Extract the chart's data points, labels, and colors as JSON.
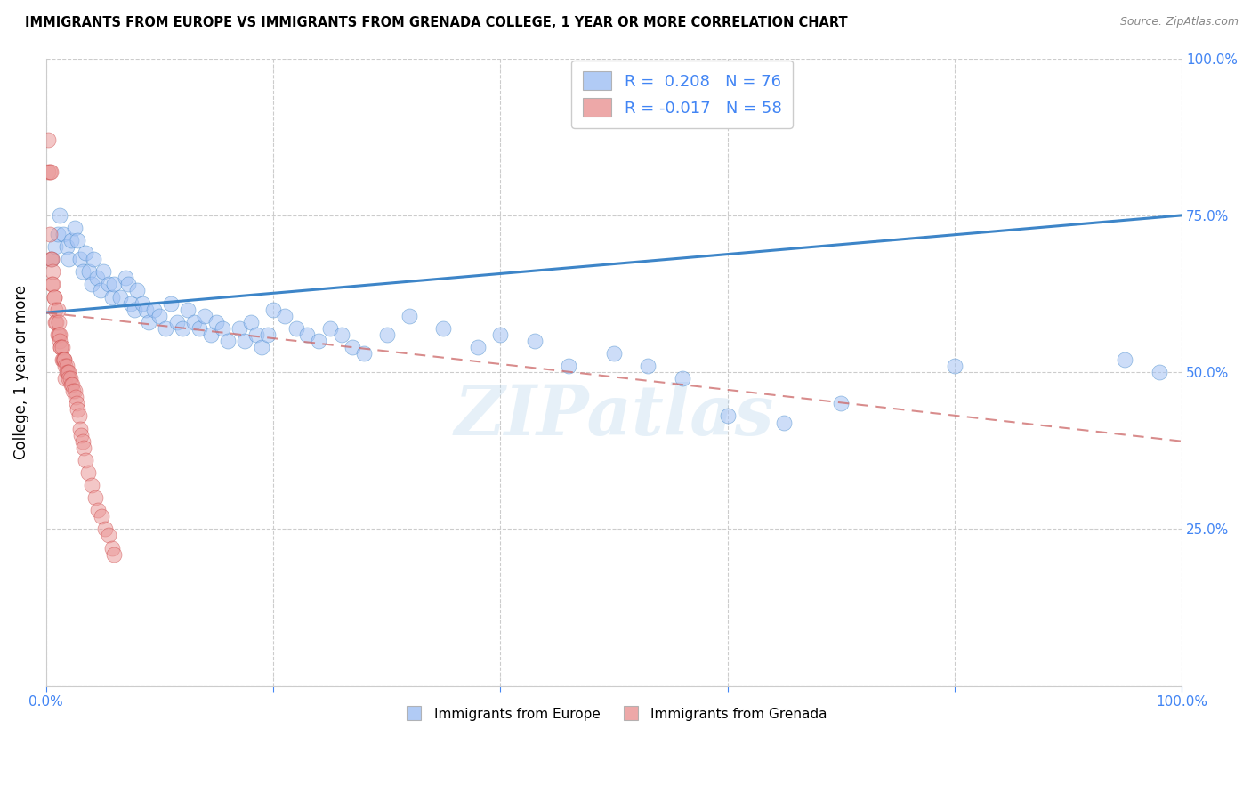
{
  "title": "IMMIGRANTS FROM EUROPE VS IMMIGRANTS FROM GRENADA COLLEGE, 1 YEAR OR MORE CORRELATION CHART",
  "source": "Source: ZipAtlas.com",
  "ylabel": "College, 1 year or more",
  "xlim": [
    0.0,
    1.0
  ],
  "ylim": [
    0.0,
    1.0
  ],
  "legend_R1": "0.208",
  "legend_N1": "76",
  "legend_R2": "-0.017",
  "legend_N2": "58",
  "blue_color": "#a4c2f4",
  "pink_color": "#ea9999",
  "blue_line_color": "#3d85c8",
  "pink_line_color": "#cc6666",
  "watermark": "ZIPatlas",
  "blue_scatter_x": [
    0.005,
    0.008,
    0.01,
    0.012,
    0.015,
    0.018,
    0.02,
    0.022,
    0.025,
    0.028,
    0.03,
    0.032,
    0.035,
    0.038,
    0.04,
    0.042,
    0.045,
    0.048,
    0.05,
    0.055,
    0.058,
    0.06,
    0.065,
    0.07,
    0.072,
    0.075,
    0.078,
    0.08,
    0.085,
    0.088,
    0.09,
    0.095,
    0.1,
    0.105,
    0.11,
    0.115,
    0.12,
    0.125,
    0.13,
    0.135,
    0.14,
    0.145,
    0.15,
    0.155,
    0.16,
    0.17,
    0.175,
    0.18,
    0.185,
    0.19,
    0.195,
    0.2,
    0.21,
    0.22,
    0.23,
    0.24,
    0.25,
    0.26,
    0.27,
    0.28,
    0.3,
    0.32,
    0.35,
    0.38,
    0.4,
    0.43,
    0.46,
    0.5,
    0.53,
    0.56,
    0.6,
    0.65,
    0.7,
    0.8,
    0.95,
    0.98
  ],
  "blue_scatter_y": [
    0.68,
    0.7,
    0.72,
    0.75,
    0.72,
    0.7,
    0.68,
    0.71,
    0.73,
    0.71,
    0.68,
    0.66,
    0.69,
    0.66,
    0.64,
    0.68,
    0.65,
    0.63,
    0.66,
    0.64,
    0.62,
    0.64,
    0.62,
    0.65,
    0.64,
    0.61,
    0.6,
    0.63,
    0.61,
    0.6,
    0.58,
    0.6,
    0.59,
    0.57,
    0.61,
    0.58,
    0.57,
    0.6,
    0.58,
    0.57,
    0.59,
    0.56,
    0.58,
    0.57,
    0.55,
    0.57,
    0.55,
    0.58,
    0.56,
    0.54,
    0.56,
    0.6,
    0.59,
    0.57,
    0.56,
    0.55,
    0.57,
    0.56,
    0.54,
    0.53,
    0.56,
    0.59,
    0.57,
    0.54,
    0.56,
    0.55,
    0.51,
    0.53,
    0.51,
    0.49,
    0.43,
    0.42,
    0.45,
    0.51,
    0.52,
    0.5
  ],
  "pink_scatter_x": [
    0.002,
    0.002,
    0.003,
    0.003,
    0.004,
    0.004,
    0.005,
    0.005,
    0.006,
    0.006,
    0.007,
    0.007,
    0.008,
    0.008,
    0.009,
    0.01,
    0.01,
    0.011,
    0.011,
    0.012,
    0.012,
    0.013,
    0.013,
    0.014,
    0.014,
    0.015,
    0.016,
    0.016,
    0.017,
    0.017,
    0.018,
    0.018,
    0.019,
    0.02,
    0.02,
    0.021,
    0.022,
    0.023,
    0.024,
    0.025,
    0.026,
    0.027,
    0.028,
    0.029,
    0.03,
    0.031,
    0.032,
    0.033,
    0.035,
    0.037,
    0.04,
    0.043,
    0.046,
    0.049,
    0.052,
    0.055,
    0.058,
    0.06
  ],
  "pink_scatter_y": [
    0.87,
    0.82,
    0.72,
    0.82,
    0.82,
    0.68,
    0.68,
    0.64,
    0.66,
    0.64,
    0.62,
    0.62,
    0.6,
    0.58,
    0.58,
    0.6,
    0.56,
    0.58,
    0.56,
    0.56,
    0.55,
    0.54,
    0.54,
    0.54,
    0.52,
    0.52,
    0.52,
    0.52,
    0.51,
    0.49,
    0.5,
    0.51,
    0.5,
    0.5,
    0.49,
    0.49,
    0.48,
    0.48,
    0.47,
    0.47,
    0.46,
    0.45,
    0.44,
    0.43,
    0.41,
    0.4,
    0.39,
    0.38,
    0.36,
    0.34,
    0.32,
    0.3,
    0.28,
    0.27,
    0.25,
    0.24,
    0.22,
    0.21
  ],
  "blue_line_y_start": 0.595,
  "blue_line_y_end": 0.75,
  "pink_line_y_start": 0.595,
  "pink_line_y_end": 0.39,
  "legend_bottom_1": "Immigrants from Europe",
  "legend_bottom_2": "Immigrants from Grenada"
}
